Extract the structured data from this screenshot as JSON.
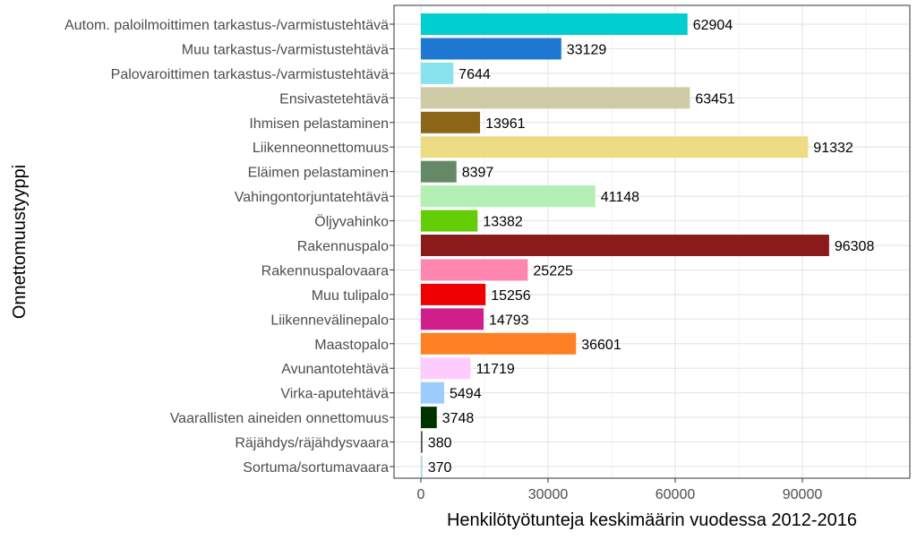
{
  "chart_data": {
    "type": "bar",
    "orientation": "horizontal",
    "xlabel": "Henkilötyötunteja keskimäärin vuodessa 2012-2016",
    "ylabel": "Onnettomuustyyppi",
    "xlim": [
      0,
      110000
    ],
    "xticks": [
      0,
      30000,
      60000,
      90000
    ],
    "xtick_labels": [
      "0",
      "30000",
      "60000",
      "90000"
    ],
    "grid": true,
    "categories": [
      "Autom. paloilmoittimen tarkastus-/varmistustehtävä",
      "Muu tarkastus-/varmistustehtävä",
      "Palovaroittimen tarkastus-/varmistustehtävä",
      "Ensivastetehtävä",
      "Ihmisen pelastaminen",
      "Liikenneonnettomuus",
      "Eläimen pelastaminen",
      "Vahingontorjuntatehtävä",
      "Öljyvahinko",
      "Rakennuspalo",
      "Rakennuspalovaara",
      "Muu tulipalo",
      "Liikennevälinepalo",
      "Maastopalo",
      "Avunantotehtävä",
      "Virka-aputehtävä",
      "Vaarallisten aineiden onnettomuus",
      "Räjähdys/räjähdysvaara",
      "Sortuma/sortumavaara"
    ],
    "values": [
      62904,
      33129,
      7644,
      63451,
      13961,
      91332,
      8397,
      41148,
      13382,
      96308,
      25225,
      15256,
      14793,
      36601,
      11719,
      5494,
      3748,
      380,
      370
    ],
    "colors": [
      "#00CED1",
      "#1E78D2",
      "#87E3EE",
      "#CFCBA7",
      "#8B6518",
      "#EDDC84",
      "#658967",
      "#B4EFB3",
      "#65CC08",
      "#8B1A1A",
      "#FF86B0",
      "#EE0000",
      "#D01F8B",
      "#FF8022",
      "#FFCCFF",
      "#9DCCFF",
      "#003300",
      "#555555",
      "#ADD8E6"
    ]
  }
}
